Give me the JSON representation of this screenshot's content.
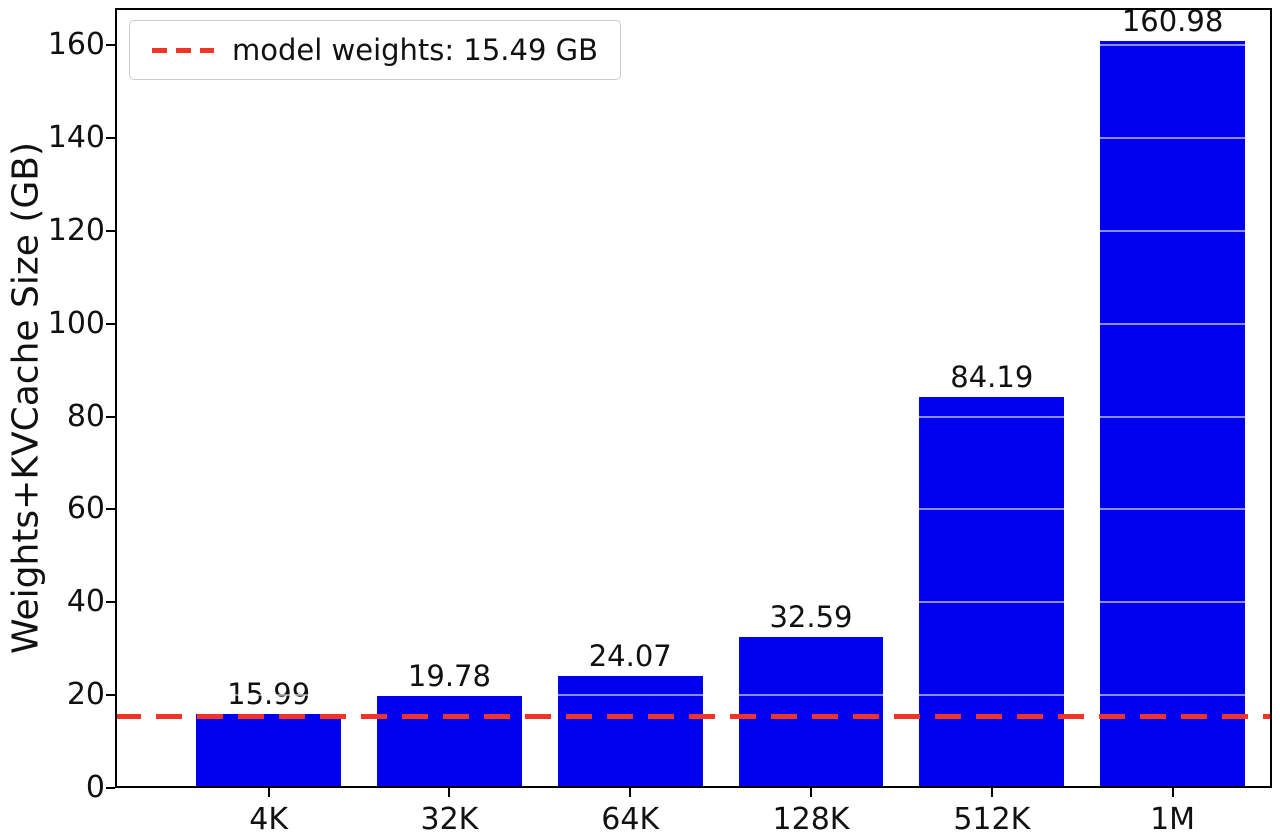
{
  "chart_data": {
    "type": "bar",
    "title": "",
    "ylabel": "Weights+KVCache Size (GB)",
    "xlabel": "",
    "categories": [
      "4K",
      "32K",
      "64K",
      "128K",
      "512K",
      "1M"
    ],
    "values": [
      15.99,
      19.78,
      24.07,
      32.59,
      84.19,
      160.98
    ],
    "value_labels": [
      "15.99",
      "19.78",
      "24.07",
      "32.59",
      "84.19",
      "160.98"
    ],
    "ylim": [
      0,
      168
    ],
    "yticks": [
      0,
      20,
      40,
      60,
      80,
      100,
      120,
      140,
      160
    ],
    "grid": true,
    "legend": {
      "position": "upper-left",
      "entries": [
        {
          "label": "model weights: 15.49 GB",
          "line_style": "dashed",
          "color": "#f03428"
        }
      ]
    },
    "reference_line": {
      "value": 15.49,
      "unit": "GB",
      "style": "dashed",
      "color": "#f03428"
    },
    "colors": {
      "bar": "#0000ee",
      "reference": "#f03428",
      "axis": "#000000",
      "text": "#111111"
    }
  }
}
